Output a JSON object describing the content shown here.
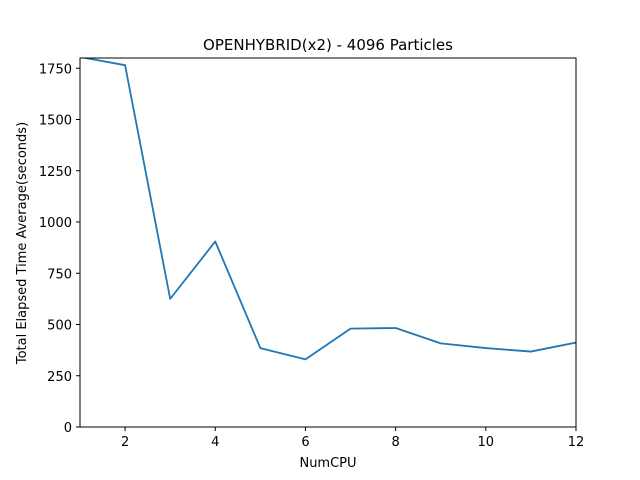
{
  "chart_data": {
    "type": "line",
    "title": "OPENHYBRID(x2) - 4096 Particles",
    "xlabel": "NumCPU",
    "ylabel": "Total Elapsed Time Average(seconds)",
    "xlim": [
      1,
      12
    ],
    "ylim": [
      0,
      1800
    ],
    "xticks": [
      2,
      4,
      6,
      8,
      10,
      12
    ],
    "yticks": [
      0,
      250,
      500,
      750,
      1000,
      1250,
      1500,
      1750
    ],
    "grid": false,
    "series": [
      {
        "color": "#1f77b4",
        "x": [
          1,
          2,
          3,
          4,
          5,
          6,
          7,
          8,
          9,
          10,
          11,
          12
        ],
        "y": [
          1805,
          1765,
          625,
          905,
          385,
          330,
          480,
          483,
          408,
          385,
          368,
          412
        ]
      }
    ]
  }
}
